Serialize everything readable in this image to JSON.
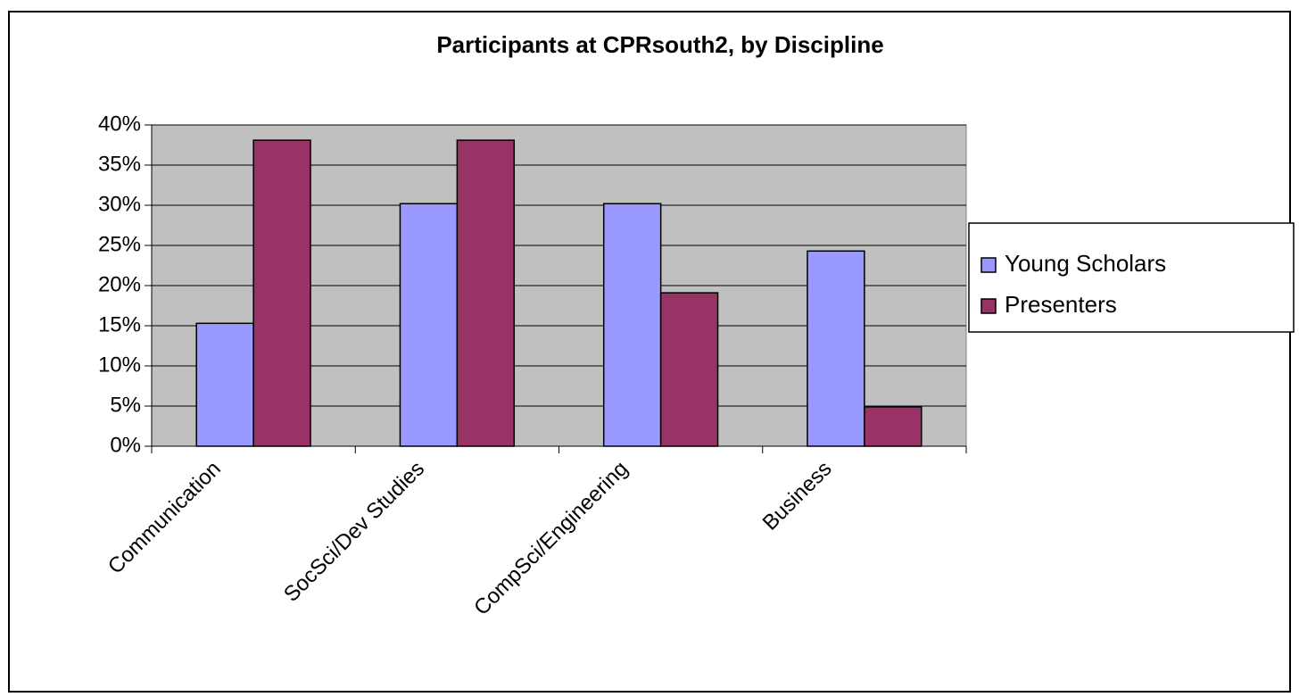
{
  "chart_data": {
    "type": "bar",
    "title": "Participants at CPRsouth2, by Discipline",
    "categories": [
      "Communication",
      "SocSci/Dev Studies",
      "CompSci/Engineering",
      "Business"
    ],
    "series": [
      {
        "name": "Young Scholars",
        "color": "#9999ff",
        "values": [
          15.3,
          30.2,
          30.2,
          24.3
        ]
      },
      {
        "name": "Presenters",
        "color": "#993366",
        "values": [
          38.1,
          38.1,
          19.1,
          4.9
        ]
      }
    ],
    "ylim": [
      0,
      40
    ],
    "yticks": [
      {
        "value": 0,
        "label": "0%"
      },
      {
        "value": 5,
        "label": "5%"
      },
      {
        "value": 10,
        "label": "10%"
      },
      {
        "value": 15,
        "label": "15%"
      },
      {
        "value": 20,
        "label": "20%"
      },
      {
        "value": 25,
        "label": "25%"
      },
      {
        "value": 30,
        "label": "30%"
      },
      {
        "value": 35,
        "label": "35%"
      },
      {
        "value": 40,
        "label": "40%"
      }
    ],
    "grid": true,
    "legend": "right"
  }
}
